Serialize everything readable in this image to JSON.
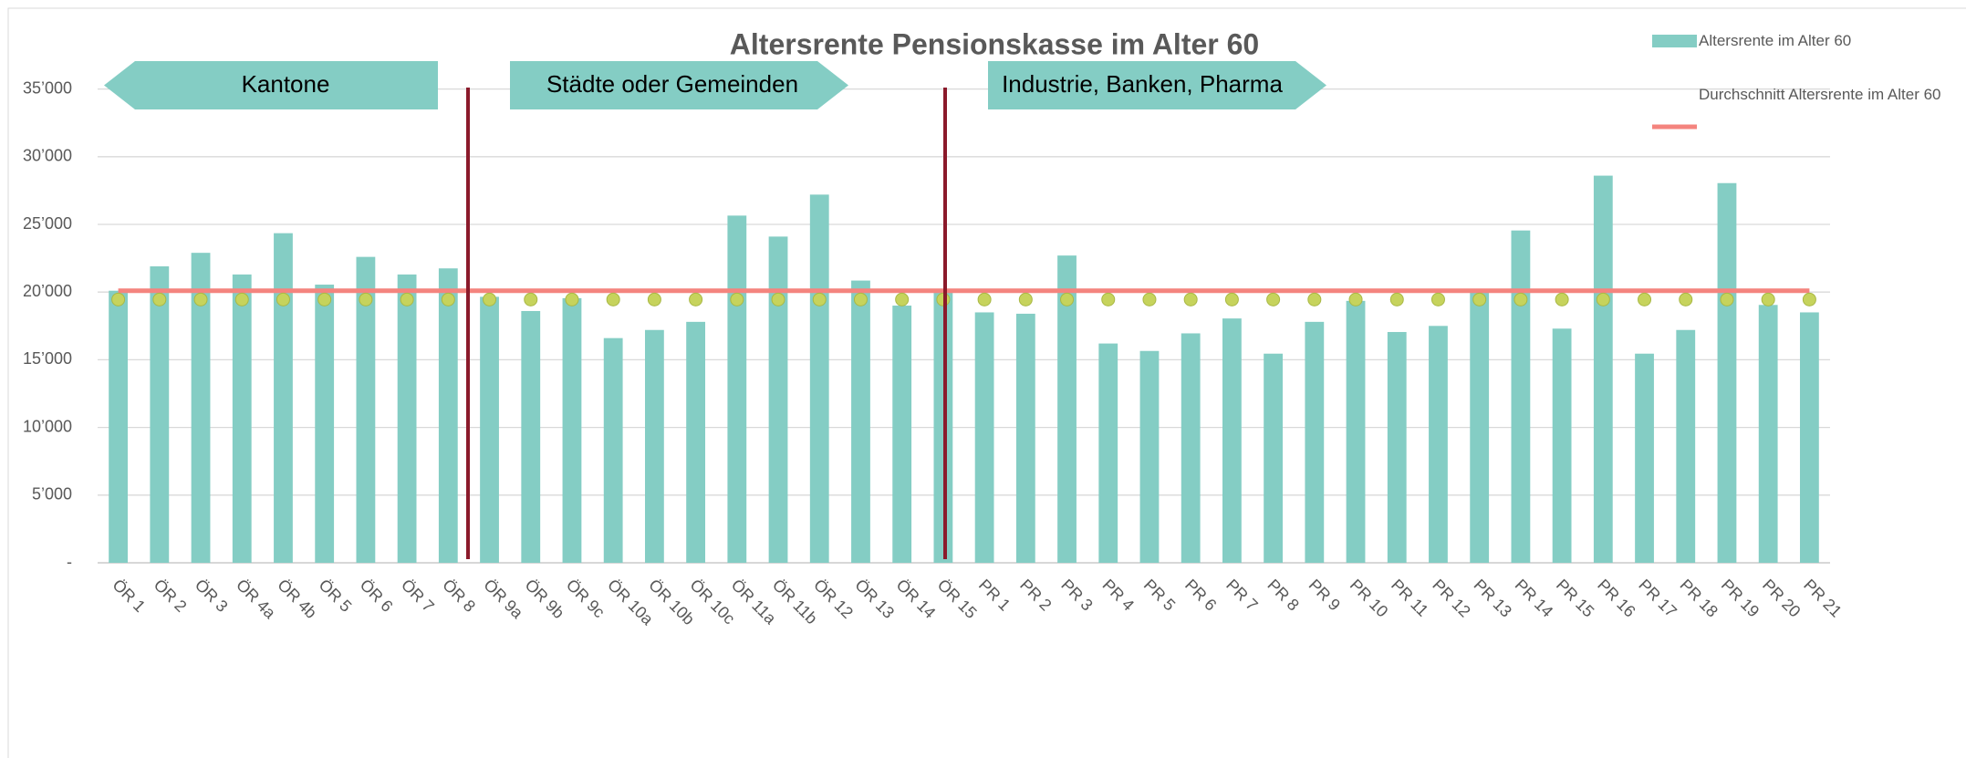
{
  "chart_data": {
    "type": "bar",
    "title": "Altersrente Pensionskasse im Alter 60",
    "categories": [
      "ÖR 1",
      "ÖR 2",
      "ÖR 3",
      "ÖR 4a",
      "ÖR 4b",
      "ÖR 5",
      "ÖR 6",
      "ÖR 7",
      "ÖR 8",
      "ÖR 9a",
      "ÖR 9b",
      "ÖR 9c",
      "ÖR 10a",
      "ÖR 10b",
      "ÖR 10c",
      "ÖR 11a",
      "ÖR 11b",
      "ÖR 12",
      "ÖR 13",
      "ÖR 14",
      "ÖR 15",
      "PR 1",
      "PR 2",
      "PR 3",
      "PR 4",
      "PR 5",
      "PR 6",
      "PR 7",
      "PR 8",
      "PR 9",
      "PR 10",
      "PR 11",
      "PR 12",
      "PR 13",
      "PR 14",
      "PR 15",
      "PR 16",
      "PR 17",
      "PR 18",
      "PR 19",
      "PR 20",
      "PR 21"
    ],
    "series": [
      {
        "name": "Altersrente im Alter 60",
        "type": "bar",
        "color": "#84cdc4",
        "values": [
          20100,
          21900,
          22900,
          21300,
          24350,
          20550,
          22600,
          21300,
          21750,
          19650,
          18600,
          19550,
          16600,
          17200,
          17800,
          25650,
          24100,
          27200,
          20850,
          19000,
          20100,
          18500,
          18400,
          22700,
          16200,
          15650,
          16950,
          18050,
          15450,
          17800,
          19350,
          17050,
          17500,
          20100,
          24550,
          17300,
          28600,
          15450,
          17200,
          28050,
          19050,
          18500
        ]
      },
      {
        "name": "Durchschnitt Altersrente im Alter 60",
        "type": "line",
        "color": "#f4847e",
        "values": [
          20100,
          20100,
          20100,
          20100,
          20100,
          20100,
          20100,
          20100,
          20100,
          20100,
          20100,
          20100,
          20100,
          20100,
          20100,
          20100,
          20100,
          20100,
          20100,
          20100,
          20100,
          20100,
          20100,
          20100,
          20100,
          20100,
          20100,
          20100,
          20100,
          20100,
          20100,
          20100,
          20100,
          20100,
          20100,
          20100,
          20100,
          20100,
          20100,
          20100,
          20100,
          20100
        ]
      },
      {
        "type": "scatter",
        "color": "#c6d35c",
        "values": [
          19450,
          19450,
          19450,
          19450,
          19450,
          19450,
          19450,
          19450,
          19450,
          19450,
          19450,
          19450,
          19450,
          19450,
          19450,
          19450,
          19450,
          19450,
          19450,
          19450,
          19450,
          19450,
          19450,
          19450,
          19450,
          19450,
          19450,
          19450,
          19450,
          19450,
          19450,
          19450,
          19450,
          19450,
          19450,
          19450,
          19450,
          19450,
          19450,
          19450,
          19450,
          19450
        ]
      }
    ],
    "annotations": [
      "Kantone",
      "Städte oder Gemeinden",
      "Industrie, Banken, Pharma"
    ],
    "ylim": [
      0,
      35000
    ],
    "yticks": [
      {
        "value": 0,
        "label": "-"
      },
      {
        "value": 5000,
        "label": "5’000"
      },
      {
        "value": 10000,
        "label": "10’000"
      },
      {
        "value": 15000,
        "label": "15’000"
      },
      {
        "value": 20000,
        "label": "20’000"
      },
      {
        "value": 25000,
        "label": "25’000"
      },
      {
        "value": 30000,
        "label": "30’000"
      },
      {
        "value": 35000,
        "label": "35’000"
      }
    ],
    "grid": true,
    "legend": "top-right"
  }
}
